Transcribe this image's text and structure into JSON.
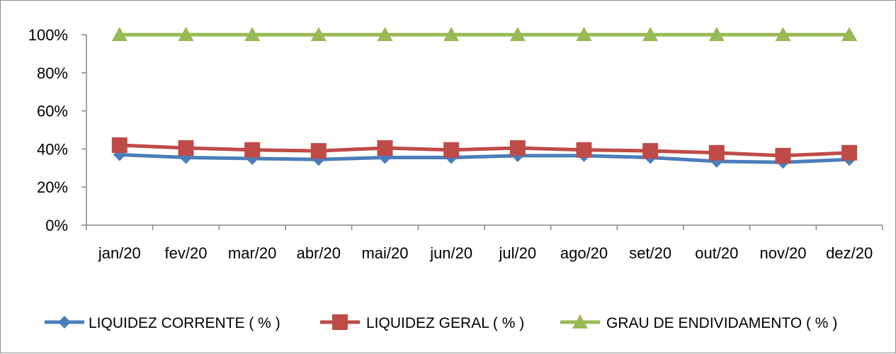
{
  "chart_data": {
    "type": "line",
    "title": "",
    "xlabel": "",
    "ylabel": "",
    "categories": [
      "jan/20",
      "fev/20",
      "mar/20",
      "abr/20",
      "mai/20",
      "jun/20",
      "jul/20",
      "ago/20",
      "set/20",
      "out/20",
      "nov/20",
      "dez/20"
    ],
    "y_ticks": [
      "0%",
      "20%",
      "40%",
      "60%",
      "80%",
      "100%"
    ],
    "ylim": [
      0,
      100
    ],
    "grid": false,
    "legend_position": "bottom",
    "series": [
      {
        "name": "LIQUIDEZ CORRENTE ( % )",
        "color": "#4a7ebb",
        "marker": "diamond",
        "values": [
          37,
          35.5,
          35,
          34.5,
          35.5,
          35.5,
          36.5,
          36.5,
          35.5,
          33.5,
          33,
          34.5
        ]
      },
      {
        "name": "LIQUIDEZ GERAL ( % )",
        "color": "#be4b48",
        "marker": "square",
        "values": [
          42,
          40.5,
          39.5,
          39,
          40.5,
          39.5,
          40.5,
          39.5,
          39,
          38,
          36.5,
          38
        ]
      },
      {
        "name": "GRAU DE ENDIVIDAMENTO ( % )",
        "color": "#98b954",
        "marker": "triangle",
        "values": [
          100,
          100,
          100,
          100,
          100,
          100,
          100,
          100,
          100,
          100,
          100,
          100
        ]
      }
    ]
  }
}
